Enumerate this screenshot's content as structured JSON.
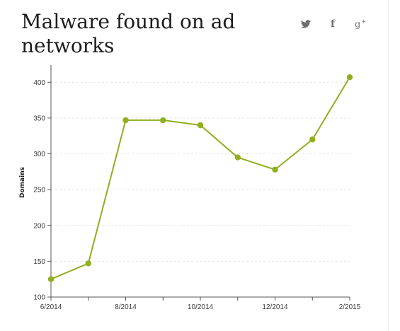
{
  "header": {
    "title": "Malware found on ad networks"
  },
  "share": {
    "facebook_glyph": "f",
    "gplus_glyph": "g",
    "gplus_sup": "+",
    "icons": [
      "twitter-icon",
      "facebook-icon",
      "google-plus-icon"
    ]
  },
  "colors": {
    "series": "#8faf1e",
    "grid": "#e3e3e3",
    "axis": "#555555"
  },
  "chart_data": {
    "type": "line",
    "title": "Malware found on ad networks",
    "xlabel": "",
    "ylabel": "Domains",
    "x_tick_labels": [
      "6/2014",
      "8/2014",
      "10/2014",
      "12/2014",
      "2/2015"
    ],
    "yticks": [
      100,
      150,
      200,
      250,
      300,
      350,
      400
    ],
    "ylim": [
      100,
      420
    ],
    "grid": true,
    "series": [
      {
        "x": [
          "2014-06",
          "2014-07",
          "2014-08",
          "2014-09",
          "2014-10",
          "2014-11",
          "2014-12",
          "2015-01",
          "2015-02"
        ],
        "values": [
          125,
          147,
          347,
          347,
          340,
          295,
          278,
          320,
          407
        ]
      }
    ]
  }
}
